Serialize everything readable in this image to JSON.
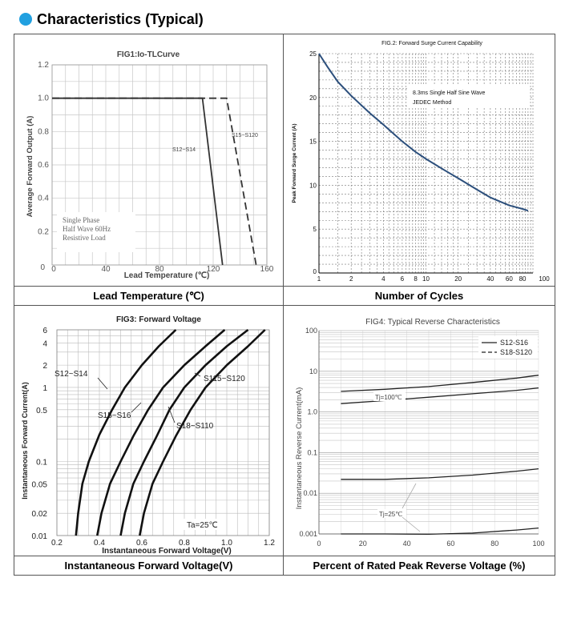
{
  "header": {
    "title": "Characteristics (Typical)",
    "bullet_color": "#21a0e0"
  },
  "captions": {
    "c1": "Lead Temperature (℃)",
    "c2": "Number of Cycles",
    "c3": "Instantaneous Forward Voltage(V)",
    "c4": "Percent of Rated Peak Reverse Voltage (%)"
  },
  "chart_data": [
    {
      "type": "line",
      "title": "FIG1:Io-TLCurve",
      "xlabel": "Lead  Temperature (℃)",
      "ylabel": "Average Forward Output (A)",
      "xlim": [
        0,
        160
      ],
      "ylim": [
        0,
        1.2
      ],
      "x_ticks": [
        0,
        40,
        80,
        120,
        160
      ],
      "y_ticks": [
        0,
        0.2,
        0.4,
        0.6,
        0.8,
        1.0,
        1.2
      ],
      "x_tick_labels": [
        "0",
        "40",
        "80",
        "120",
        "160"
      ],
      "y_tick_labels": [
        "0",
        "0.2",
        "0.4",
        "0.6",
        "0.8",
        "1.0",
        "1.2"
      ],
      "grid": true,
      "annotation": [
        "Single Phase",
        "Half Wave 60Hz",
        "Resistive Load"
      ],
      "series": [
        {
          "name": "S12~S14",
          "style": "solid",
          "x": [
            0,
            112,
            127
          ],
          "y": [
            1.0,
            1.0,
            0
          ]
        },
        {
          "name": "S15~S120",
          "style": "dashed",
          "x": [
            0,
            130,
            152
          ],
          "y": [
            1.0,
            1.0,
            0
          ]
        }
      ]
    },
    {
      "type": "line",
      "title": "FIG.2: Forward Surge Current Capability",
      "xlabel": "",
      "ylabel": "Peak Forward Surge Current (A)",
      "xscale": "log",
      "xlim": [
        1,
        100
      ],
      "ylim": [
        0,
        25
      ],
      "x_ticks": [
        1,
        2,
        4,
        6,
        8,
        10,
        20,
        40,
        60,
        80,
        100
      ],
      "x_tick_labels": [
        "1",
        "2",
        "4",
        "6",
        "8",
        "10",
        "20",
        "40",
        "60",
        "80",
        "100"
      ],
      "y_ticks": [
        0,
        5,
        10,
        15,
        20,
        25
      ],
      "y_tick_labels": [
        "0",
        "5",
        "10",
        "15",
        "20",
        "25"
      ],
      "grid": true,
      "annotation": [
        "8.3ms Single Half Sine Wave",
        "JEDEC Method"
      ],
      "line_color": "#2c4f7c",
      "series": [
        {
          "x": [
            1,
            1.2,
            1.5,
            2,
            3,
            4,
            6,
            8,
            10,
            15,
            20,
            30,
            40,
            60,
            80,
            90
          ],
          "y": [
            25,
            23.5,
            21.8,
            20.2,
            18.2,
            16.9,
            15,
            13.8,
            13,
            11.7,
            10.8,
            9.5,
            8.6,
            7.7,
            7.3,
            7.1
          ]
        }
      ]
    },
    {
      "type": "line",
      "title": "FIG3:  Forward Voltage",
      "xlabel": "Instantaneous Forward Voltage(V)",
      "ylabel": "Instantaneous Forward Current(A)",
      "yscale": "log",
      "xlim": [
        0.2,
        1.2
      ],
      "ylim": [
        0.01,
        6
      ],
      "x_ticks": [
        0.2,
        0.4,
        0.6,
        0.8,
        1.0,
        1.2
      ],
      "x_tick_labels": [
        "0.2",
        "0.4",
        "0.6",
        "0.8",
        "1.0",
        "1.2"
      ],
      "y_ticks": [
        0.01,
        0.02,
        0.05,
        0.1,
        0.5,
        1,
        2,
        4,
        6
      ],
      "y_tick_labels": [
        "0.01",
        "0.02",
        "0.05",
        "0.1",
        "0.5",
        "1",
        "2",
        "4",
        "6"
      ],
      "grid": true,
      "annotation": [
        "Ta=25℃"
      ],
      "series": [
        {
          "name": "S12~S14",
          "x": [
            0.29,
            0.3,
            0.32,
            0.35,
            0.4,
            0.46,
            0.52,
            0.6,
            0.68,
            0.76
          ],
          "y": [
            0.01,
            0.02,
            0.05,
            0.1,
            0.23,
            0.5,
            1,
            2,
            3.6,
            6
          ]
        },
        {
          "name": "S15~S16",
          "x": [
            0.39,
            0.41,
            0.45,
            0.5,
            0.56,
            0.63,
            0.7,
            0.8,
            0.9,
            0.99
          ],
          "y": [
            0.01,
            0.02,
            0.05,
            0.1,
            0.22,
            0.5,
            1,
            2,
            3.6,
            6
          ]
        },
        {
          "name": "S115~S120",
          "x": [
            0.5,
            0.52,
            0.56,
            0.61,
            0.67,
            0.73,
            0.8,
            0.9,
            1.0,
            1.1
          ],
          "y": [
            0.01,
            0.02,
            0.05,
            0.1,
            0.22,
            0.5,
            1,
            2,
            3.6,
            6
          ]
        },
        {
          "name": "S18~S110",
          "x": [
            0.59,
            0.61,
            0.65,
            0.7,
            0.76,
            0.83,
            0.9,
            1.0,
            1.1,
            1.18
          ],
          "y": [
            0.01,
            0.02,
            0.05,
            0.1,
            0.22,
            0.5,
            1,
            2,
            3.6,
            6
          ]
        }
      ]
    },
    {
      "type": "line",
      "title": "FIG4:  Typical Reverse Characteristics",
      "xlabel": "",
      "ylabel": "Instantaneous Reverse Current(mA)",
      "yscale": "log",
      "xlim": [
        0,
        100
      ],
      "ylim": [
        0.001,
        100
      ],
      "x_ticks": [
        0,
        20,
        40,
        60,
        80,
        100
      ],
      "x_tick_labels": [
        "0",
        "20",
        "40",
        "60",
        "80",
        "100"
      ],
      "y_ticks": [
        0.001,
        0.01,
        0.1,
        1,
        10,
        100
      ],
      "y_tick_labels": [
        "0.001",
        "0.01",
        "0.1",
        "1.0",
        "10",
        "100"
      ],
      "grid": true,
      "legend": "top-right",
      "annotations": [
        "Tj=100℃",
        "Tj=25℃"
      ],
      "series": [
        {
          "name": "S12-S16",
          "style": "solid",
          "x": [
            10,
            30,
            50,
            70,
            90,
            100
          ],
          "y": [
            3.2,
            3.6,
            4.2,
            5.3,
            6.8,
            8
          ]
        },
        {
          "name": "S18-S120",
          "style": "solid",
          "x": [
            10,
            30,
            50,
            70,
            90,
            100
          ],
          "y": [
            1.6,
            1.9,
            2.3,
            2.8,
            3.4,
            3.9
          ]
        },
        {
          "style": "solid",
          "x": [
            10,
            30,
            50,
            70,
            90,
            100
          ],
          "y": [
            0.022,
            0.022,
            0.024,
            0.028,
            0.035,
            0.04
          ]
        },
        {
          "style": "solid",
          "x": [
            10,
            30,
            50,
            70,
            90,
            100
          ],
          "y": [
            0.001,
            0.001,
            0.00098,
            0.00105,
            0.00125,
            0.0014
          ]
        }
      ]
    }
  ]
}
